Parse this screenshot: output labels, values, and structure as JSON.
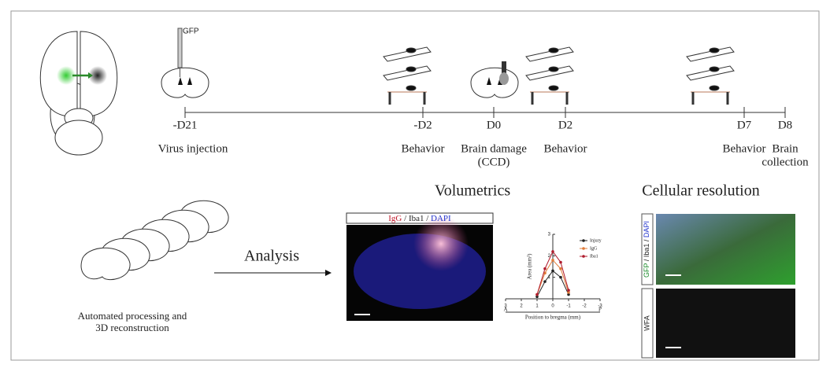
{
  "injection": {
    "label": "GFP"
  },
  "timeline": [
    {
      "day": "-D21",
      "caption": [
        "Virus injection"
      ]
    },
    {
      "day": "-D2",
      "caption": [
        "Behavior"
      ]
    },
    {
      "day": "D0",
      "caption": [
        "Brain damage",
        "(CCD)"
      ]
    },
    {
      "day": "D2",
      "caption": [
        "Behavior"
      ]
    },
    {
      "day": "D7",
      "caption": [
        "Behavior"
      ]
    },
    {
      "day": "D8",
      "caption": [
        "Brain",
        "collection"
      ]
    }
  ],
  "processing": {
    "caption": [
      "Automated processing and",
      "3D reconstruction"
    ],
    "arrow_label": "Analysis"
  },
  "volumetrics": {
    "title": "Volumetrics",
    "stain": [
      {
        "text": "IgG",
        "color": "#c0182a"
      },
      {
        "text": " / ",
        "color": "#222222"
      },
      {
        "text": "Iba1",
        "color": "#222222"
      },
      {
        "text": " / ",
        "color": "#222222"
      },
      {
        "text": "DAPI",
        "color": "#2233cc"
      }
    ]
  },
  "plot": {
    "type": "line",
    "x": [
      1,
      0.5,
      0,
      -0.5,
      -1
    ],
    "series": [
      {
        "name": "Injury",
        "color": "#222222",
        "values": [
          0.1,
          0.8,
          1.3,
          1.0,
          0.2
        ]
      },
      {
        "name": "IgG",
        "color": "#e07b39",
        "values": [
          0.2,
          1.2,
          1.8,
          1.4,
          0.3
        ]
      },
      {
        "name": "Iba1",
        "color": "#b01c2e",
        "values": [
          0.2,
          1.4,
          2.2,
          1.7,
          0.4
        ]
      }
    ],
    "xlim": [
      3,
      -3
    ],
    "ylim": [
      0,
      3
    ],
    "xticks": [
      3,
      2,
      1,
      0,
      -1,
      -2,
      -3
    ],
    "yticks": [
      1,
      2,
      3
    ],
    "ylabel": "Area (mm³)",
    "xlabel": "Position to bregma (mm)",
    "x_start_label": "A",
    "x_end_label": "P"
  },
  "cellular": {
    "title": "Cellular resolution",
    "stain": [
      {
        "text": "GFP",
        "color": "#1a8a2a"
      },
      {
        "text": " / ",
        "color": "#222222"
      },
      {
        "text": "Iba1",
        "color": "#222222"
      },
      {
        "text": " / ",
        "color": "#222222"
      },
      {
        "text": "DAPI",
        "color": "#2233cc"
      }
    ],
    "stain2": "WFA"
  }
}
